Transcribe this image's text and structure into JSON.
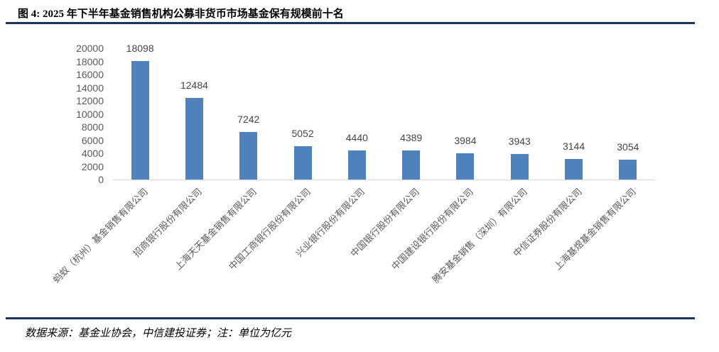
{
  "header": {
    "title": "图 4: 2025 年下半年基金销售机构公募非货币市场基金保有规模前十名"
  },
  "footer": {
    "source_note": "数据来源：基金业协会，中信建投证券；注：单位为亿元"
  },
  "colors": {
    "bar": "#4F81BD",
    "divider": "#17375E",
    "axis_label": "#595959",
    "data_label": "#444444",
    "axis_line": "#D9D9D9",
    "title_text": "#000000"
  },
  "chart_data": {
    "type": "bar",
    "title": "2025 年下半年基金销售机构公募非货币市场基金保有规模前十名",
    "unit": "亿元",
    "categories": [
      "蚂蚁（杭州）基金销售有限公司",
      "招商银行股份有限公司",
      "上海天天基金销售有限公司",
      "中国工商银行股份有限公司",
      "兴业银行股份有限公司",
      "中国银行股份有限公司",
      "中国建设银行股份有限公司",
      "腾安基金销售（深圳）有限公司",
      "中信证券股份有限公司",
      "上海基煜基金销售有限公司"
    ],
    "values": [
      18098,
      12484,
      7242,
      5052,
      4440,
      4389,
      3984,
      3943,
      3144,
      3054
    ],
    "ylim": [
      0,
      20000
    ],
    "ytick_step": 2000,
    "ytick_labels": [
      "0",
      "2000",
      "4000",
      "6000",
      "8000",
      "10000",
      "12000",
      "14000",
      "16000",
      "18000",
      "20000"
    ],
    "xlabel": "",
    "ylabel": "",
    "grid": false,
    "legend": false,
    "data_labels": true,
    "x_label_rotation": 45
  }
}
